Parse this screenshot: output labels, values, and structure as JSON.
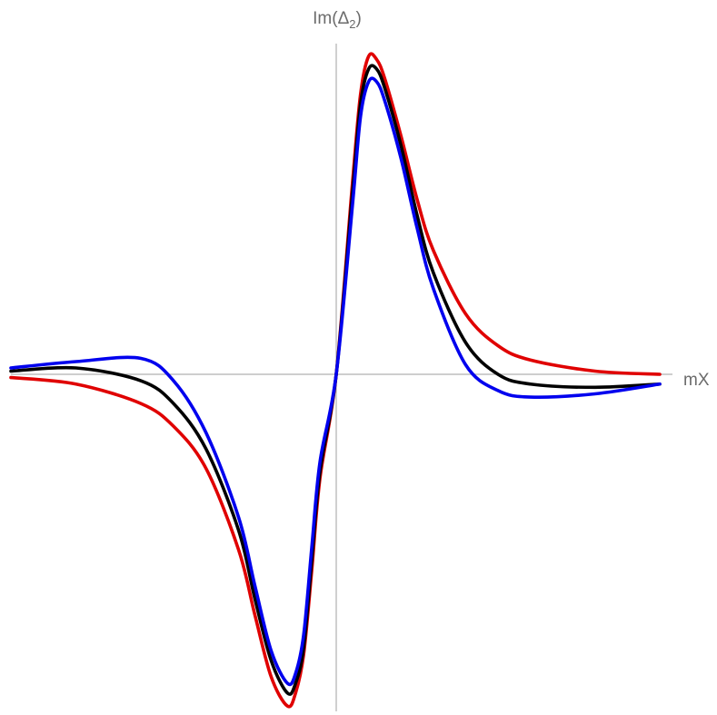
{
  "chart_data": {
    "type": "line",
    "xlabel": "mX",
    "ylabel": {
      "prefix": "Im(Δ",
      "subscript": "2",
      "suffix": ")"
    },
    "xlim": [
      -10,
      10
    ],
    "ylim": [
      -1.0,
      1.0
    ],
    "grid": false,
    "legend": "none",
    "series": [
      {
        "color": "#e00000",
        "x": [
          -10,
          -8,
          -6,
          -5,
          -4,
          -3,
          -2.5,
          -2,
          -1.5,
          -1.25,
          -1,
          -0.75,
          -0.5,
          0,
          0.5,
          0.75,
          1,
          1.25,
          1.5,
          2,
          2.5,
          3,
          4,
          5,
          6,
          8,
          10
        ],
        "y": [
          -0.01,
          -0.03,
          -0.09,
          -0.16,
          -0.29,
          -0.54,
          -0.74,
          -0.93,
          -1.02,
          -0.98,
          -0.86,
          -0.6,
          -0.32,
          0.0,
          0.6,
          0.88,
          1.0,
          0.99,
          0.93,
          0.75,
          0.55,
          0.39,
          0.19,
          0.09,
          0.045,
          0.01,
          0.0
        ]
      },
      {
        "color": "#000000",
        "x": [
          -10,
          -8,
          -6,
          -5,
          -4,
          -3,
          -2.5,
          -2,
          -1.5,
          -1.25,
          -1,
          -0.75,
          -0.5,
          0,
          0.5,
          0.75,
          1,
          1.25,
          1.5,
          2,
          2.5,
          3,
          4,
          5,
          6,
          8,
          10
        ],
        "y": [
          0.01,
          0.02,
          -0.02,
          -0.09,
          -0.23,
          -0.48,
          -0.69,
          -0.88,
          -0.98,
          -0.95,
          -0.84,
          -0.57,
          -0.3,
          0.0,
          0.57,
          0.85,
          0.96,
          0.96,
          0.9,
          0.72,
          0.5,
          0.32,
          0.1,
          0.0,
          -0.03,
          -0.04,
          -0.03
        ]
      },
      {
        "color": "#0000ee",
        "x": [
          -10,
          -8,
          -6,
          -5,
          -4,
          -3,
          -2.5,
          -2,
          -1.5,
          -1.25,
          -1,
          -0.75,
          -0.5,
          0,
          0.5,
          0.75,
          1,
          1.25,
          1.5,
          2,
          2.5,
          3,
          4,
          5,
          6,
          8,
          10
        ],
        "y": [
          0.02,
          0.04,
          0.05,
          -0.02,
          -0.18,
          -0.44,
          -0.65,
          -0.85,
          -0.95,
          -0.92,
          -0.8,
          -0.53,
          -0.27,
          0.0,
          0.53,
          0.81,
          0.92,
          0.92,
          0.86,
          0.68,
          0.46,
          0.27,
          0.03,
          -0.05,
          -0.07,
          -0.06,
          -0.03
        ]
      }
    ]
  }
}
